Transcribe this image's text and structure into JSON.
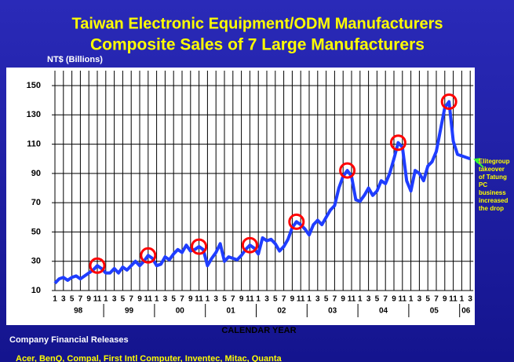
{
  "chart_data": {
    "type": "line",
    "title": "Taiwan Electronic Equipment/ODM Manufacturers",
    "subtitle": "Composite Sales of 7 Large Manufacturers",
    "y_label": "NT$ (Billions)",
    "x_label": "CALENDAR YEAR",
    "source": "Company Financial Releases",
    "companies": "Acer, BenQ, Compal, First Intl Computer, Inventec, Mitac, Quanta",
    "annotation": "Elitegroup takeover of Tatung PC business increased the drop",
    "categories": [
      "1",
      null,
      "3",
      null,
      "5",
      null,
      "7",
      null,
      "9",
      null,
      "11",
      null,
      "1",
      null,
      "3",
      null,
      "5",
      null,
      "7",
      null,
      "9",
      null,
      "11",
      null,
      "1",
      null,
      "3",
      null,
      "5",
      null,
      "7",
      null,
      "9",
      null,
      "11",
      null,
      "1",
      null,
      "3",
      null,
      "5",
      null,
      "7",
      null,
      "9",
      null,
      "11",
      null,
      "1",
      null,
      "3",
      null,
      "5",
      null,
      "7",
      null,
      "9",
      null,
      "11",
      null,
      "1",
      null,
      "3",
      null,
      "5",
      null,
      "7",
      null,
      "9",
      null,
      "11",
      null,
      "1",
      null,
      "3",
      null,
      "5",
      null,
      "7",
      null,
      "9",
      null,
      "11",
      null,
      "1",
      null,
      "3",
      null,
      "5",
      null,
      "7",
      null,
      "9",
      null,
      "11",
      null,
      "1",
      null,
      "3"
    ],
    "year_labels": [
      "98",
      "99",
      "00",
      "01",
      "02",
      "03",
      "04",
      "05",
      "06"
    ],
    "series": [
      {
        "name": "Composite Sales",
        "color": "#1f3dff",
        "values": [
          15,
          18,
          19,
          17,
          19,
          20,
          18,
          20,
          22,
          24,
          27,
          25,
          22,
          22,
          25,
          22,
          26,
          24,
          27,
          30,
          27,
          30,
          34,
          32,
          27,
          28,
          33,
          31,
          35,
          38,
          36,
          41,
          37,
          38,
          40,
          38,
          27,
          32,
          36,
          42,
          30,
          33,
          32,
          31,
          34,
          38,
          41,
          39,
          35,
          46,
          44,
          45,
          42,
          37,
          40,
          45,
          53,
          57,
          55,
          52,
          48,
          55,
          58,
          55,
          60,
          65,
          68,
          80,
          88,
          92,
          88,
          72,
          71,
          75,
          80,
          75,
          78,
          85,
          83,
          90,
          100,
          111,
          108,
          85,
          78,
          92,
          90,
          85,
          95,
          98,
          105,
          120,
          135,
          139,
          112,
          103,
          102,
          101,
          100
        ]
      }
    ],
    "highlight": [
      10,
      22,
      34,
      46,
      57,
      69,
      81,
      93
    ],
    "highlight_color": "#ff0000",
    "ylim": [
      10,
      150
    ],
    "yticks": [
      10,
      30,
      50,
      70,
      90,
      110,
      130,
      150
    ],
    "grid": true
  }
}
